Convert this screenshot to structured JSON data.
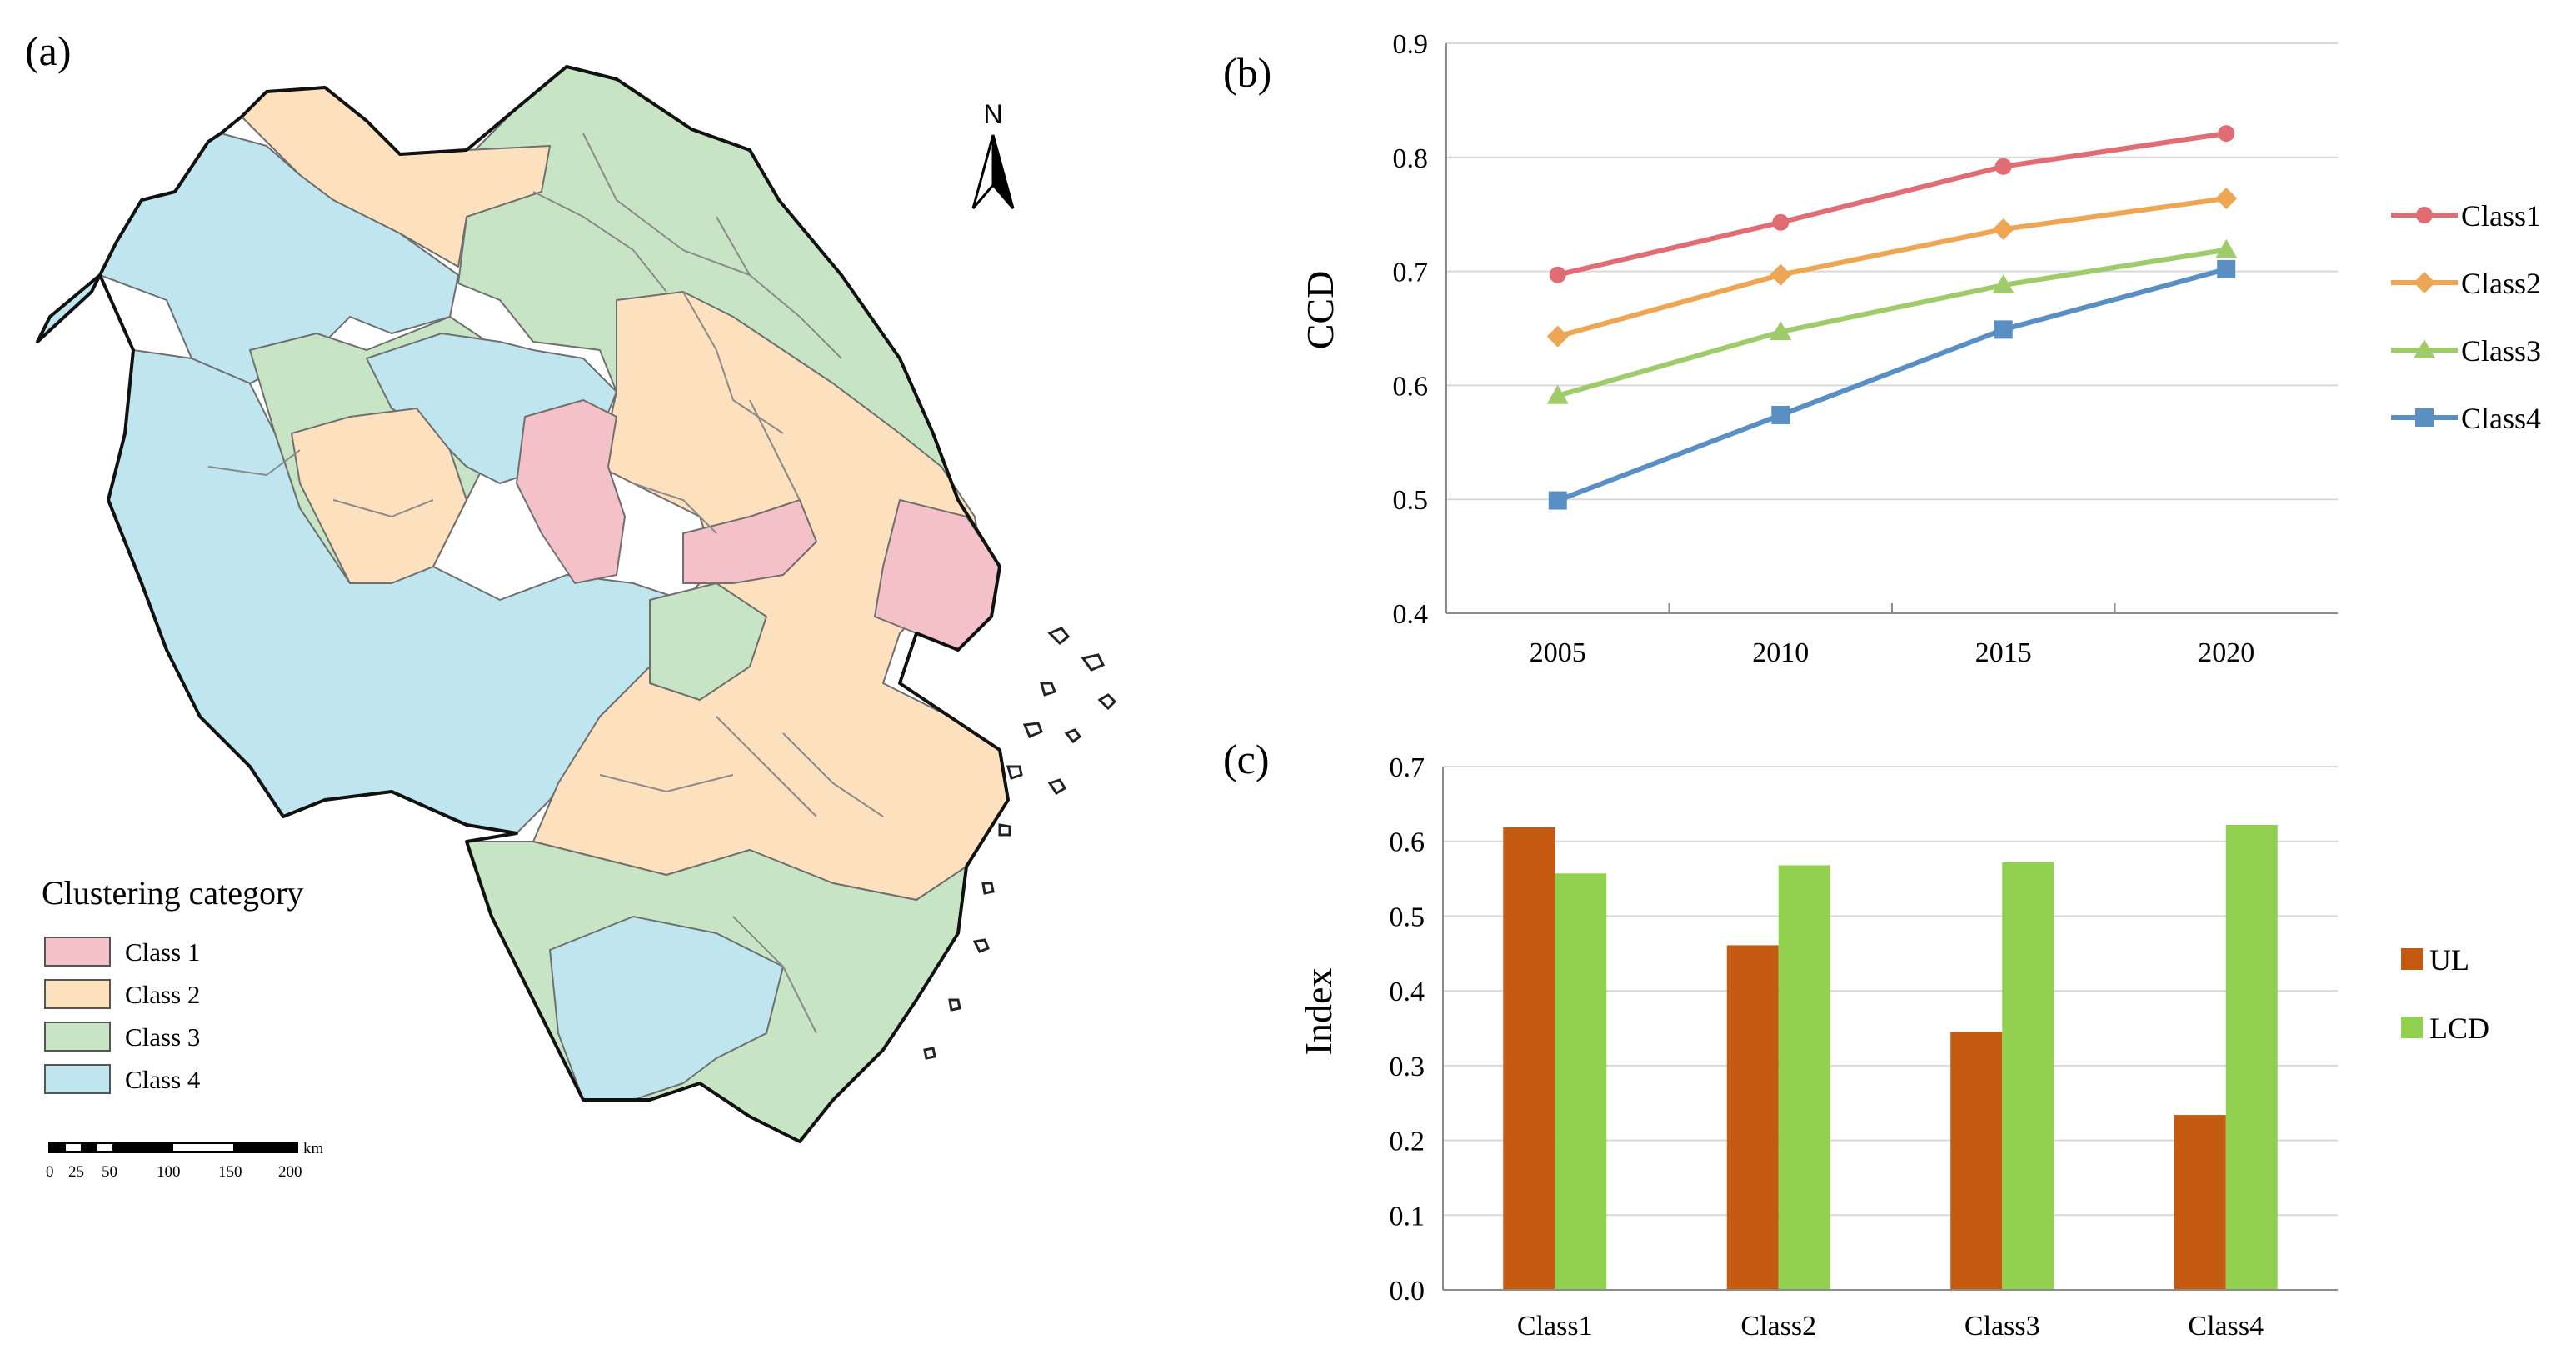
{
  "panel_a": {
    "label": "(a)",
    "north_label": "N",
    "legend": {
      "title": "Clustering category",
      "items": [
        {
          "label": "Class 1",
          "color": "#f4c1c8"
        },
        {
          "label": "Class 2",
          "color": "#fde0bd"
        },
        {
          "label": "Class 3",
          "color": "#c7e5c5"
        },
        {
          "label": "Class 4",
          "color": "#bfe6ef"
        }
      ]
    },
    "scale_bar": {
      "unit": "km",
      "labels": [
        "0",
        "25",
        "50",
        "100",
        "150",
        "200"
      ]
    }
  },
  "chart_data": [
    {
      "id": "b",
      "label": "(b)",
      "type": "line",
      "x": [
        "2005",
        "2010",
        "2015",
        "2020"
      ],
      "ylabel": "CCD",
      "xlabel": "",
      "ylim": [
        0.4,
        0.9
      ],
      "yticks": [
        "0.4",
        "0.5",
        "0.6",
        "0.7",
        "0.8",
        "0.9"
      ],
      "grid": true,
      "legend_position": "right",
      "series": [
        {
          "name": "Class1",
          "color": "#e06d73",
          "marker": "circle",
          "values": [
            0.697,
            0.743,
            0.792,
            0.821
          ]
        },
        {
          "name": "Class2",
          "color": "#eda654",
          "marker": "diamond",
          "values": [
            0.643,
            0.697,
            0.737,
            0.764
          ]
        },
        {
          "name": "Class3",
          "color": "#9fcb6b",
          "marker": "triangle",
          "values": [
            0.591,
            0.647,
            0.688,
            0.719
          ]
        },
        {
          "name": "Class4",
          "color": "#5a8fc4",
          "marker": "square",
          "values": [
            0.499,
            0.574,
            0.649,
            0.702
          ]
        }
      ]
    },
    {
      "id": "c",
      "label": "(c)",
      "type": "bar",
      "categories": [
        "Class1",
        "Class2",
        "Class3",
        "Class4"
      ],
      "ylabel": "Index",
      "xlabel": "",
      "ylim": [
        0.0,
        0.7
      ],
      "yticks": [
        "0.0",
        "0.1",
        "0.2",
        "0.3",
        "0.4",
        "0.5",
        "0.6",
        "0.7"
      ],
      "grid": true,
      "legend_position": "right",
      "series": [
        {
          "name": "UL",
          "color": "#c55a11",
          "values": [
            0.619,
            0.461,
            0.345,
            0.234
          ]
        },
        {
          "name": "LCD",
          "color": "#92d050",
          "values": [
            0.557,
            0.568,
            0.572,
            0.622
          ]
        }
      ]
    }
  ]
}
